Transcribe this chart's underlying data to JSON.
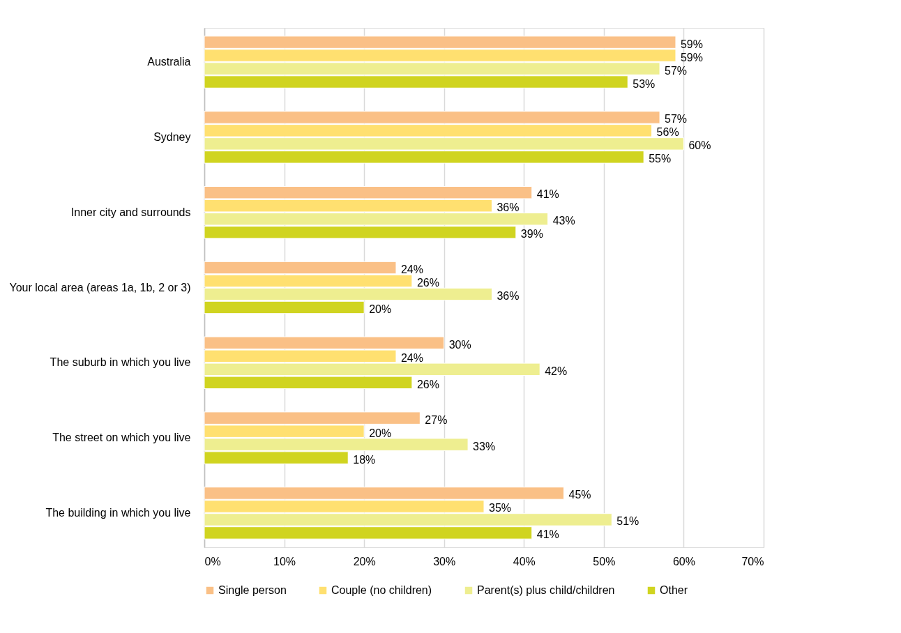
{
  "chart_data": {
    "type": "bar",
    "orientation": "horizontal",
    "categories": [
      "Australia",
      "Sydney",
      "Inner city and surrounds",
      "Your local area (areas 1a, 1b, 2 or 3)",
      "The suburb in which you live",
      "The street on which you live",
      "The building in which you live"
    ],
    "series": [
      {
        "name": "Single person",
        "color": "#fac086",
        "values": [
          59,
          57,
          41,
          24,
          30,
          27,
          45
        ],
        "value_labels": [
          "59%",
          "57%",
          "41%",
          "24%",
          "30%",
          "27%",
          "45%"
        ]
      },
      {
        "name": "Couple (no children)",
        "color": "#ffe070",
        "values": [
          59,
          56,
          36,
          26,
          24,
          20,
          35
        ],
        "value_labels": [
          "59%",
          "56%",
          "36%",
          "26%",
          "24%",
          "20%",
          "35%"
        ]
      },
      {
        "name": "Parent(s) plus child/children",
        "color": "#eeee90",
        "values": [
          57,
          60,
          43,
          36,
          42,
          33,
          51
        ],
        "value_labels": [
          "57%",
          "60%",
          "43%",
          "36%",
          "42%",
          "33%",
          "51%"
        ]
      },
      {
        "name": "Other",
        "color": "#d0d420",
        "values": [
          53,
          55,
          39,
          20,
          26,
          18,
          41
        ],
        "value_labels": [
          "53%",
          "55%",
          "39%",
          "20%",
          "26%",
          "18%",
          "41%"
        ]
      }
    ],
    "xlim": [
      0,
      70
    ],
    "xticks": [
      {
        "value": 0,
        "label": "0%"
      },
      {
        "value": 10,
        "label": "10%"
      },
      {
        "value": 20,
        "label": "20%"
      },
      {
        "value": 30,
        "label": "30%"
      },
      {
        "value": 40,
        "label": "40%"
      },
      {
        "value": 50,
        "label": "50%"
      },
      {
        "value": 60,
        "label": "60%"
      },
      {
        "value": 70,
        "label": "70%"
      }
    ],
    "grid": "x",
    "legend": "bottom"
  }
}
